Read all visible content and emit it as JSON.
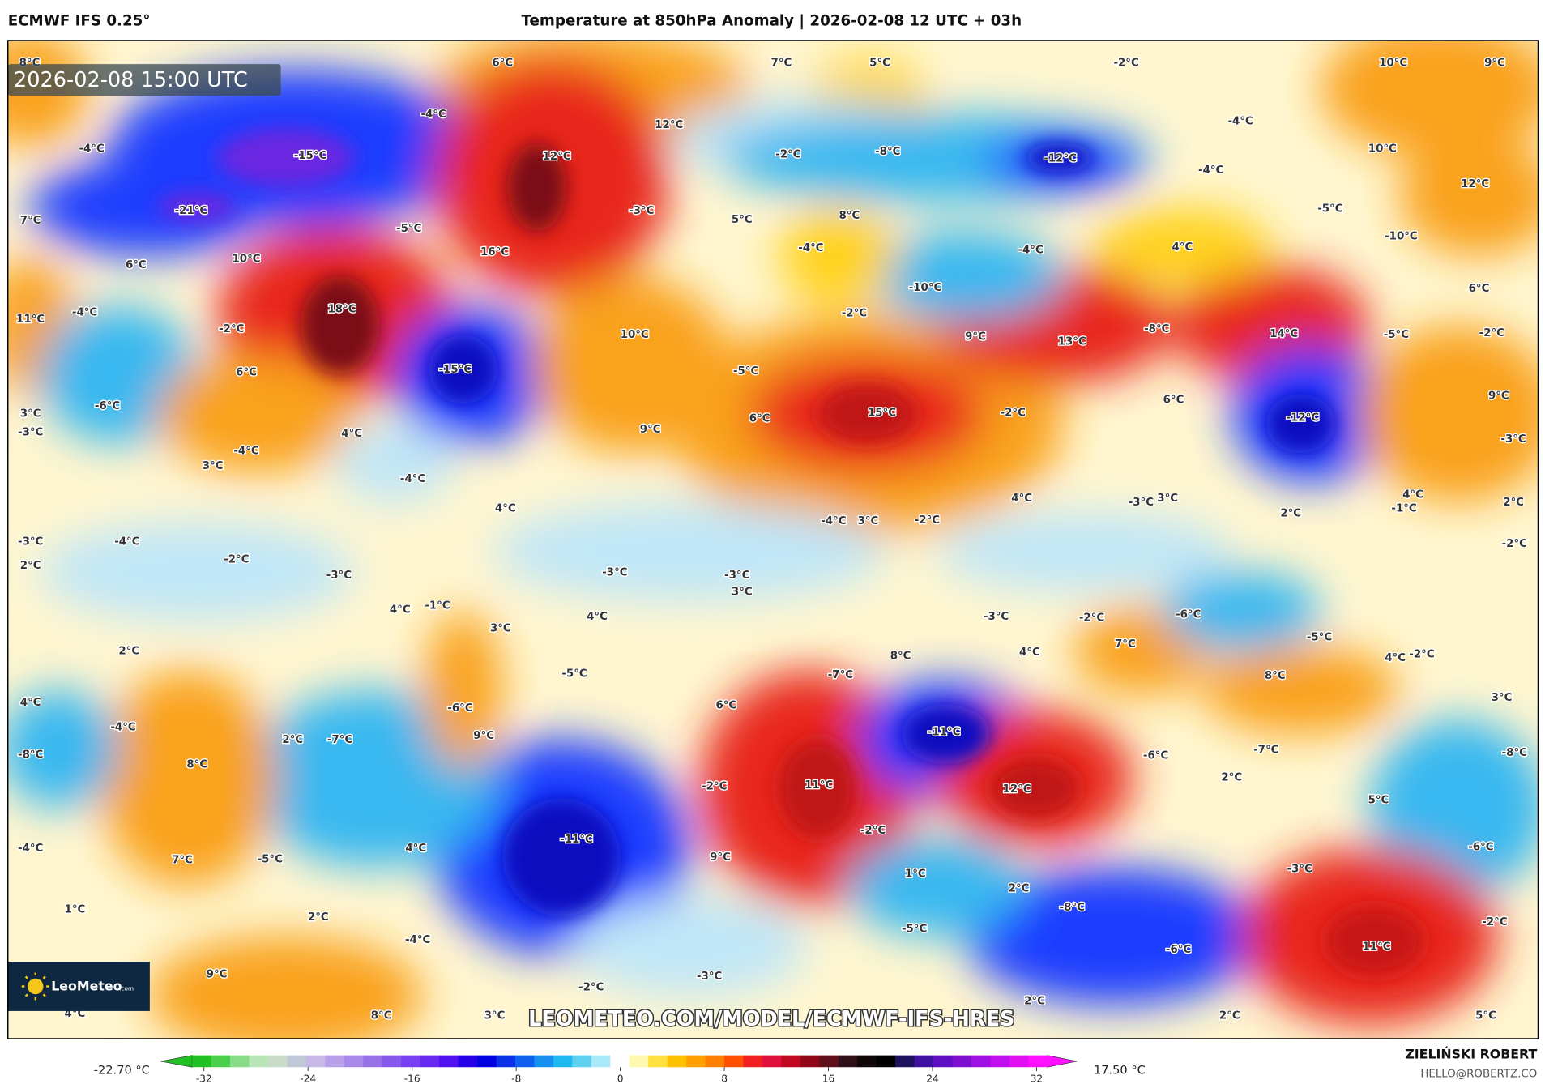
{
  "header": {
    "model": "ECMWF IFS 0.25°",
    "title": "Temperature at 850hPa Anomaly | 2026-02-08 12 UTC + 03h"
  },
  "map": {
    "valid_time": "2026-02-08 15:00 UTC",
    "watermark": "LEOMETEO.COM/MODEL/ECMWF-IFS-HRES",
    "logo_text": "LeoMeteo",
    "logo_suffix": ".com",
    "labels": [
      "8°C",
      "6°C",
      "7°C",
      "5°C",
      "-2°C",
      "10°C",
      "9°C",
      "-4°C",
      "12°C",
      "-4°C",
      "-4°C",
      "-15°C",
      "12°C",
      "-2°C",
      "-8°C",
      "-12°C",
      "10°C",
      "-4°C",
      "12°C",
      "-21°C",
      "-3°C",
      "8°C",
      "5°C",
      "-5°C",
      "-10°C",
      "7°C",
      "-5°C",
      "-4°C",
      "-4°C",
      "4°C",
      "6°C",
      "10°C",
      "16°C",
      "11°C",
      "-4°C",
      "18°C",
      "-10°C",
      "6°C",
      "-2°C",
      "10°C",
      "-2°C",
      "9°C",
      "13°C",
      "-8°C",
      "14°C",
      "-5°C",
      "-2°C",
      "6°C",
      "-15°C",
      "-5°C",
      "3°C",
      "-6°C",
      "9°C",
      "6°C",
      "15°C",
      "-2°C",
      "6°C",
      "-12°C",
      "9°C",
      "-3°C",
      "4°C",
      "-3°C",
      "-4°C",
      "3°C",
      "-4°C",
      "4°C",
      "-4°C",
      "3°C",
      "-2°C",
      "4°C",
      "-3°C",
      "3°C",
      "4°C",
      "-1°C",
      "2°C",
      "2°C",
      "-3°C",
      "-4°C",
      "-2°C",
      "2°C",
      "-3°C",
      "-3°C",
      "-3°C",
      "3°C",
      "-2°C",
      "4°C",
      "-1°C",
      "3°C",
      "4°C",
      "-3°C",
      "-2°C",
      "-6°C",
      "2°C",
      "7°C",
      "4°C",
      "8°C",
      "-5°C",
      "4°C",
      "-2°C",
      "-5°C",
      "-7°C",
      "8°C",
      "4°C",
      "-6°C",
      "6°C",
      "3°C",
      "-4°C",
      "2°C",
      "-7°C",
      "9°C",
      "-11°C",
      "-8°C",
      "8°C",
      "-6°C",
      "-7°C",
      "-8°C",
      "-2°C",
      "11°C",
      "12°C",
      "2°C",
      "5°C",
      "-2°C",
      "-11°C",
      "-4°C",
      "-6°C",
      "4°C",
      "7°C",
      "-5°C",
      "9°C",
      "-3°C",
      "1°C",
      "2°C",
      "-8°C",
      "1°C",
      "2°C",
      "-4°C",
      "-5°C",
      "-2°C",
      "-6°C",
      "11°C",
      "9°C",
      "-3°C",
      "-2°C",
      "4°C",
      "8°C",
      "3°C",
      "2°C",
      "2°C",
      "5°C"
    ]
  },
  "legend": {
    "min_label": "-22.70 °C",
    "max_label": "17.50 °C",
    "ticks": [
      "-32",
      "-24",
      "-16",
      "-8",
      "0",
      "8",
      "16",
      "24",
      "32"
    ],
    "tick_values": [
      -32,
      -24,
      -16,
      -8,
      0,
      8,
      16,
      24,
      32
    ],
    "colors": [
      "#22c022",
      "#4cd04c",
      "#88dc88",
      "#b8e6b8",
      "#c8dcc8",
      "#c0c8d8",
      "#c8b8e8",
      "#b8a0e8",
      "#a888e8",
      "#9870e8",
      "#8858e8",
      "#7840f0",
      "#6828f0",
      "#5010f0",
      "#2800e8",
      "#0000e0",
      "#0a30e8",
      "#1060f0",
      "#1890f0",
      "#20b8f0",
      "#60d0f0",
      "#a8e8f8",
      "#ffffff",
      "#fff8b0",
      "#ffe040",
      "#ffc000",
      "#ffa000",
      "#ff8000",
      "#ff5000",
      "#f02020",
      "#e0103c",
      "#c00820",
      "#900818",
      "#601018",
      "#301018",
      "#100808",
      "#000000",
      "#201060",
      "#4010a0",
      "#6010c0",
      "#8010d0",
      "#a010e0",
      "#c010f0",
      "#e010f0",
      "#ff10ff"
    ]
  },
  "credits": {
    "author": "ZIELIŃSKI ROBERT",
    "email": "HELLO@ROBERTZ.CO"
  }
}
